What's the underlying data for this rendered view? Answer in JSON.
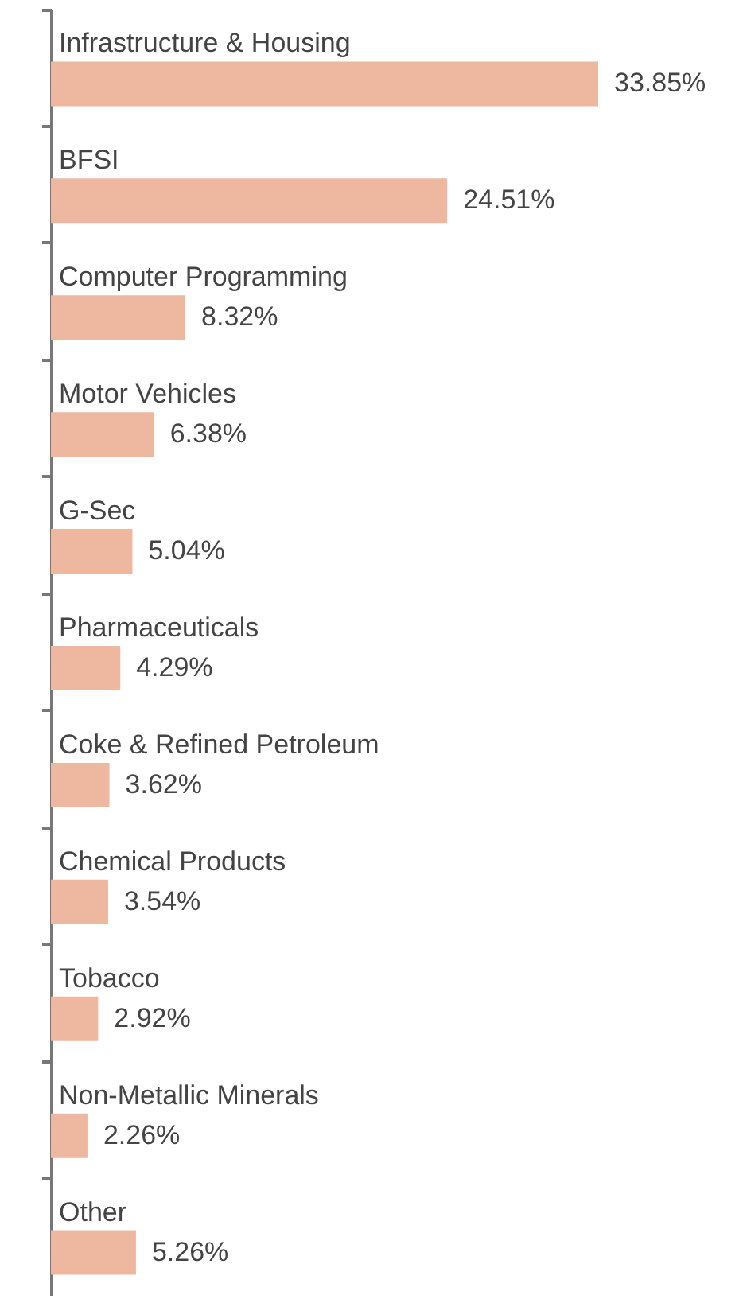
{
  "chart_data": {
    "type": "bar",
    "orientation": "horizontal",
    "categories": [
      "Infrastructure & Housing",
      "BFSI",
      "Computer Programming",
      "Motor Vehicles",
      "G-Sec",
      "Pharmaceuticals",
      "Coke & Refined Petroleum",
      "Chemical Products",
      "Tobacco",
      "Non-Metallic Minerals",
      "Other"
    ],
    "values": [
      33.85,
      24.51,
      8.32,
      6.38,
      5.04,
      4.29,
      3.62,
      3.54,
      2.92,
      2.26,
      5.26
    ],
    "value_labels": [
      "33.85%",
      "24.51%",
      "8.32%",
      "6.38%",
      "5.04%",
      "4.29%",
      "3.62%",
      "3.54%",
      "2.92%",
      "2.26%",
      "5.26%"
    ],
    "color": "#edb7a0",
    "grid": false,
    "tick_labels": false
  }
}
